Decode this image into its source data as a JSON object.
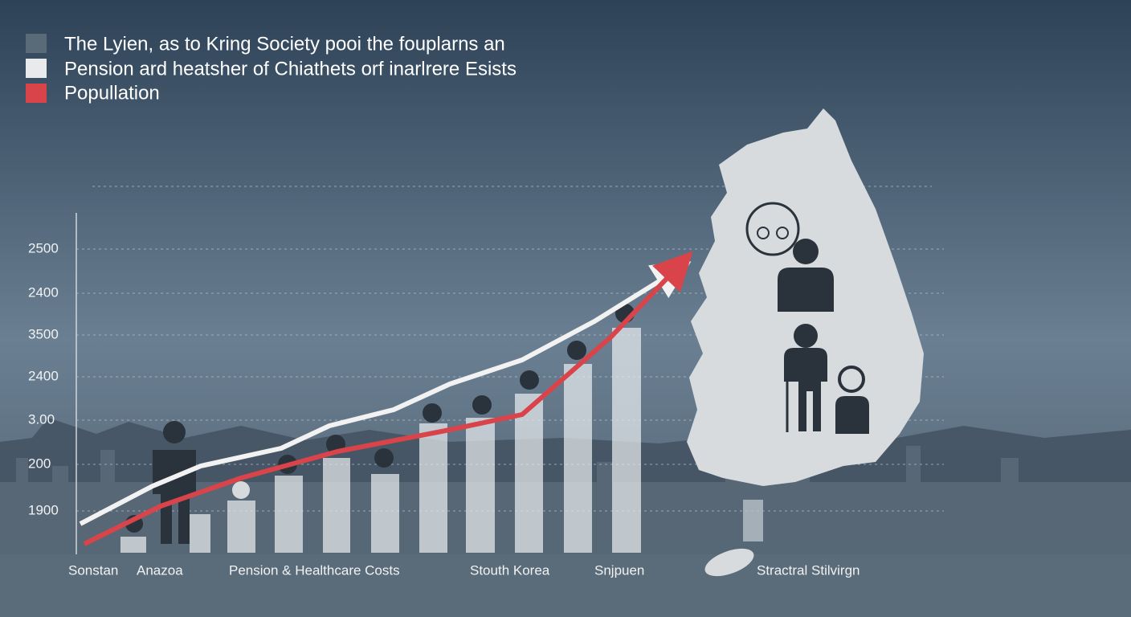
{
  "legend": [
    "The Lyien, as to Kring Society pooi the fouplarns an",
    "Pension ard heatsher of Chiathets orf inarlrere Esists",
    "Popullation"
  ],
  "y_labels": [
    "2500",
    "2400",
    "3500",
    "2400",
    "3.00",
    "200",
    "1900"
  ],
  "x_labels": [
    "Sonstan",
    "Anazoa",
    "Pension & Healthcare Costs",
    "Stouth Korea",
    "Snjpuen",
    "Stractral Stilvirgn"
  ]
}
